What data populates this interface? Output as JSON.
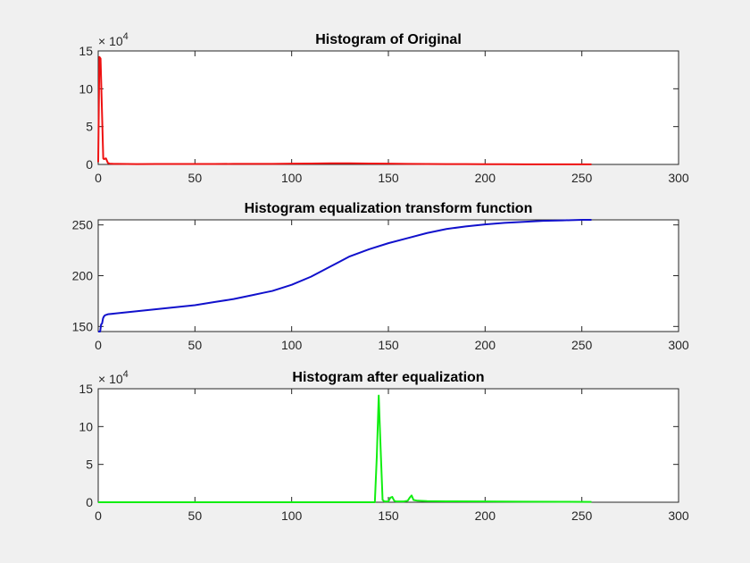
{
  "figure": {
    "background": "#f0f0f0"
  },
  "chart_data": [
    {
      "type": "line",
      "title": "Histogram of Original",
      "xlabel": "",
      "ylabel": "",
      "xlim": [
        0,
        300
      ],
      "ylim": [
        0,
        15
      ],
      "xticks": [
        "0",
        "50",
        "100",
        "150",
        "200",
        "250",
        "300"
      ],
      "yticks": [
        "0",
        "5",
        "10",
        "15"
      ],
      "y_exponent": {
        "base": "× 10",
        "power": "4"
      },
      "grid": false,
      "color": "#ee1111",
      "series": [
        {
          "x": [
            0,
            0.6,
            1.2,
            2,
            2.6,
            3,
            4,
            5,
            6,
            8,
            10,
            20,
            30,
            40,
            50,
            60,
            70,
            80,
            90,
            100,
            110,
            120,
            125,
            130,
            140,
            150,
            160,
            170,
            180,
            190,
            200,
            210,
            220,
            230,
            240,
            250,
            255
          ],
          "y": [
            0.3,
            14.2,
            14.0,
            6.5,
            0.8,
            0.7,
            0.8,
            0.2,
            0.1,
            0.08,
            0.07,
            0.05,
            0.06,
            0.06,
            0.06,
            0.06,
            0.07,
            0.07,
            0.08,
            0.1,
            0.12,
            0.14,
            0.15,
            0.14,
            0.12,
            0.1,
            0.08,
            0.06,
            0.05,
            0.04,
            0.03,
            0.03,
            0.02,
            0.02,
            0.02,
            0.01,
            0.01
          ]
        }
      ]
    },
    {
      "type": "line",
      "title": "Histogram equalization transform function",
      "xlabel": "",
      "ylabel": "",
      "xlim": [
        0,
        300
      ],
      "ylim": [
        145,
        255
      ],
      "xticks": [
        "0",
        "50",
        "100",
        "150",
        "200",
        "250",
        "300"
      ],
      "yticks": [
        "150",
        "200",
        "250"
      ],
      "grid": false,
      "color": "#1111cc",
      "series": [
        {
          "x": [
            0,
            1,
            1.5,
            2,
            2.5,
            3,
            3.5,
            5,
            10,
            20,
            30,
            40,
            50,
            60,
            70,
            80,
            85,
            90,
            100,
            110,
            120,
            130,
            140,
            150,
            160,
            170,
            180,
            190,
            200,
            210,
            220,
            230,
            240,
            250,
            255
          ],
          "y": [
            145,
            145,
            152,
            153,
            158,
            160,
            161,
            162,
            163,
            165,
            167,
            169,
            171,
            174,
            177,
            181,
            183,
            185,
            191,
            199,
            209,
            219,
            226,
            232,
            237,
            242,
            246,
            248.5,
            250.5,
            252,
            253,
            254,
            254.5,
            255,
            255
          ]
        }
      ]
    },
    {
      "type": "line",
      "title": "Histogram after equalization",
      "xlabel": "",
      "ylabel": "",
      "xlim": [
        0,
        300
      ],
      "ylim": [
        0,
        15
      ],
      "xticks": [
        "0",
        "50",
        "100",
        "150",
        "200",
        "250",
        "300"
      ],
      "yticks": [
        "0",
        "5",
        "10",
        "15"
      ],
      "y_exponent": {
        "base": "× 10",
        "power": "4"
      },
      "grid": false,
      "color": "#11ee11",
      "series": [
        {
          "x": [
            0,
            50,
            100,
            140,
            143,
            144,
            145,
            146,
            147,
            148,
            150,
            151,
            152,
            153,
            154,
            158,
            160,
            161,
            162,
            163,
            165,
            170,
            180,
            200,
            220,
            240,
            255
          ],
          "y": [
            0,
            0,
            0,
            0,
            0,
            6,
            14.1,
            7,
            0.3,
            0.1,
            0.1,
            0.6,
            0.7,
            0.2,
            0.1,
            0.1,
            0.2,
            0.6,
            0.9,
            0.3,
            0.2,
            0.15,
            0.12,
            0.1,
            0.08,
            0.06,
            0.05
          ]
        }
      ]
    }
  ]
}
